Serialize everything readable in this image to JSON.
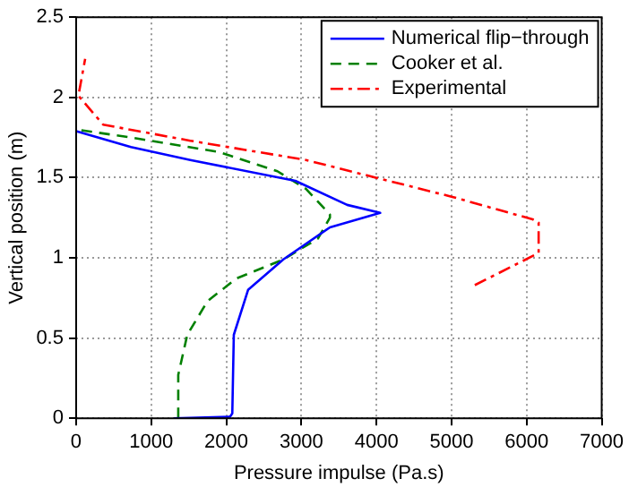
{
  "chart_data": {
    "type": "line",
    "xlabel": "Pressure impulse (Pa.s)",
    "ylabel": "Vertical position (m)",
    "xlim": [
      0,
      7000
    ],
    "xticks": [
      0,
      1000,
      2000,
      3000,
      4000,
      5000,
      6000,
      7000
    ],
    "ylim": [
      0,
      2.5
    ],
    "yticks": [
      0,
      0.5,
      1,
      1.5,
      2,
      2.5
    ],
    "grid": true,
    "legend": "top right",
    "marker": "none",
    "series": [
      {
        "name": "Numerical flip−through",
        "color": "#0000ff",
        "line_style": "solid",
        "x": [
          1300,
          2050,
          2080,
          2100,
          2290,
          2760,
          3380,
          4050,
          3610,
          2920,
          1520,
          730,
          0
        ],
        "values": [
          0,
          0.01,
          0.03,
          0.52,
          0.8,
          0.99,
          1.19,
          1.28,
          1.33,
          1.48,
          1.61,
          1.69,
          1.79
        ]
      },
      {
        "name": "Cooker et al.",
        "color": "#008000",
        "line_style": "dashed",
        "x": [
          1360,
          1360,
          1480,
          1750,
          2130,
          2760,
          3220,
          3380,
          3380,
          3060,
          2680,
          1900,
          730,
          0
        ],
        "values": [
          0,
          0.27,
          0.52,
          0.73,
          0.87,
          0.99,
          1.12,
          1.25,
          1.27,
          1.43,
          1.54,
          1.66,
          1.75,
          1.8
        ]
      },
      {
        "name": "Experimental",
        "color": "#ff0000",
        "line_style": "dashdot",
        "x": [
          5310,
          6160,
          6160,
          6080,
          5010,
          3990,
          3060,
          1520,
          360,
          30,
          120
        ],
        "values": [
          0.83,
          1.03,
          1.22,
          1.24,
          1.38,
          1.5,
          1.61,
          1.73,
          1.83,
          2.01,
          2.24
        ]
      }
    ]
  }
}
